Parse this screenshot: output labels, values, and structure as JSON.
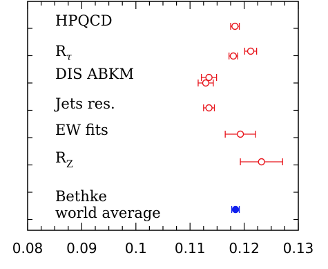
{
  "chart_data": {
    "type": "scatter",
    "xlim": [
      0.08,
      0.13
    ],
    "x_ticks": [
      "0.08",
      "0.09",
      "0.1",
      "0.11",
      "0.12",
      "0.13"
    ],
    "grid": false,
    "labels": [
      {
        "text": "HPQCD"
      },
      {
        "text": "R",
        "sub": "τ"
      },
      {
        "text": "DIS ABKM"
      },
      {
        "text": "Jets res."
      },
      {
        "text": "EW fits"
      },
      {
        "text": "R",
        "sub": "Z"
      },
      {
        "text": "Bethke"
      },
      {
        "text": "world average"
      }
    ],
    "series": [
      {
        "color": "#e8141b",
        "marker": "open-circle",
        "points": [
          {
            "row": 1,
            "x": 0.1183,
            "err": 0.0008
          },
          {
            "row": 2,
            "x": 0.1212,
            "err": 0.0011
          },
          {
            "row": 3,
            "x": 0.118,
            "err": 0.0008
          },
          {
            "row": 4,
            "x": 0.1135,
            "err": 0.0014
          },
          {
            "row": 5,
            "x": 0.1129,
            "err": 0.0014
          },
          {
            "row": 6,
            "x": 0.1135,
            "err": 0.001
          },
          {
            "row": 7,
            "x": 0.1193,
            "err": 0.0028
          },
          {
            "row": 8,
            "x": 0.1232,
            "err": 0.0039
          }
        ]
      },
      {
        "color": "#1020ee",
        "marker": "filled-circle",
        "points": [
          {
            "row": 9,
            "x": 0.1184,
            "err": 0.0007
          }
        ]
      }
    ]
  }
}
